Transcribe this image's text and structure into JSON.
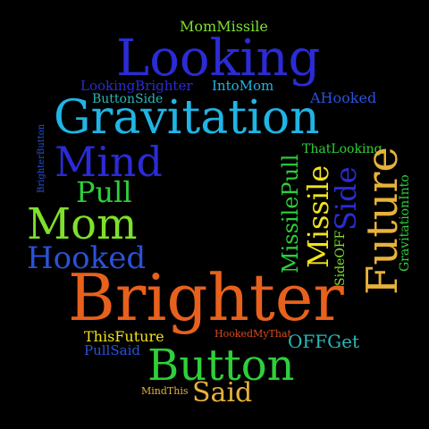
{
  "colors": {
    "background": "#000000",
    "blue": "#2b2bd6",
    "royal": "#2a52d8",
    "sky": "#2aa0e0",
    "cyan": "#1fb5e5",
    "teal": "#2ab8b8",
    "green": "#2ed03a",
    "lime": "#7ee02a",
    "yellow": "#f2e21c",
    "gold": "#e7b23a",
    "orange": "#e8611c",
    "red": "#e04a1c"
  },
  "words": {
    "mom_missile": "MomMissile",
    "looking": "Looking",
    "looking_brighter": "LookingBrighter",
    "into_mom": "IntoMom",
    "button_side": "ButtonSide",
    "a_hooked": "AHooked",
    "gravitation": "Gravitation",
    "brighter_button": "BrighterButton",
    "that_looking": "ThatLooking",
    "mind": "Mind",
    "future": "Future",
    "pull": "Pull",
    "missile_pull": "MissilePull",
    "missile": "Missile",
    "side": "Side",
    "gravitation_into": "GravitationInto",
    "mom": "Mom",
    "hooked": "Hooked",
    "side_off": "SideOFF",
    "brighter": "Brighter",
    "hooked_my_that": "HookedMyThat",
    "this_future": "ThisFuture",
    "off_get": "OFFGet",
    "pull_said": "PullSaid",
    "button": "Button",
    "mind_this": "MindThis",
    "said": "Said"
  }
}
